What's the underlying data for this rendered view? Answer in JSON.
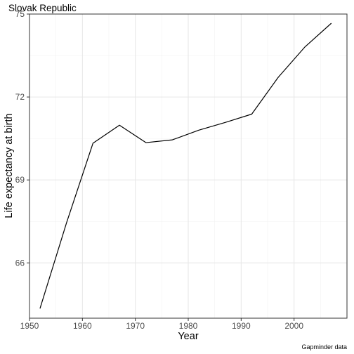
{
  "chart_data": {
    "type": "line",
    "title": "Slovak Republic",
    "xlabel": "Year",
    "ylabel": "Life expectancy at birth",
    "caption": "Gapminder data",
    "xlim": [
      1950,
      2010
    ],
    "ylim": [
      64,
      75
    ],
    "x_ticks": [
      1950,
      1960,
      1970,
      1980,
      1990,
      2000
    ],
    "y_ticks": [
      66,
      69,
      72,
      75
    ],
    "x_minor_ticks": [
      1955,
      1965,
      1975,
      1985,
      1995,
      2005
    ],
    "y_minor_ticks": [
      67.5,
      70.5,
      73.5
    ],
    "grid": true,
    "series": [
      {
        "x": [
          1952,
          1957,
          1962,
          1967,
          1972,
          1977,
          1982,
          1987,
          1992,
          1997,
          2002,
          2007
        ],
        "values": [
          64.36,
          67.45,
          70.33,
          70.98,
          70.35,
          70.45,
          70.8,
          71.08,
          71.38,
          72.71,
          73.8,
          74.66
        ]
      }
    ]
  }
}
